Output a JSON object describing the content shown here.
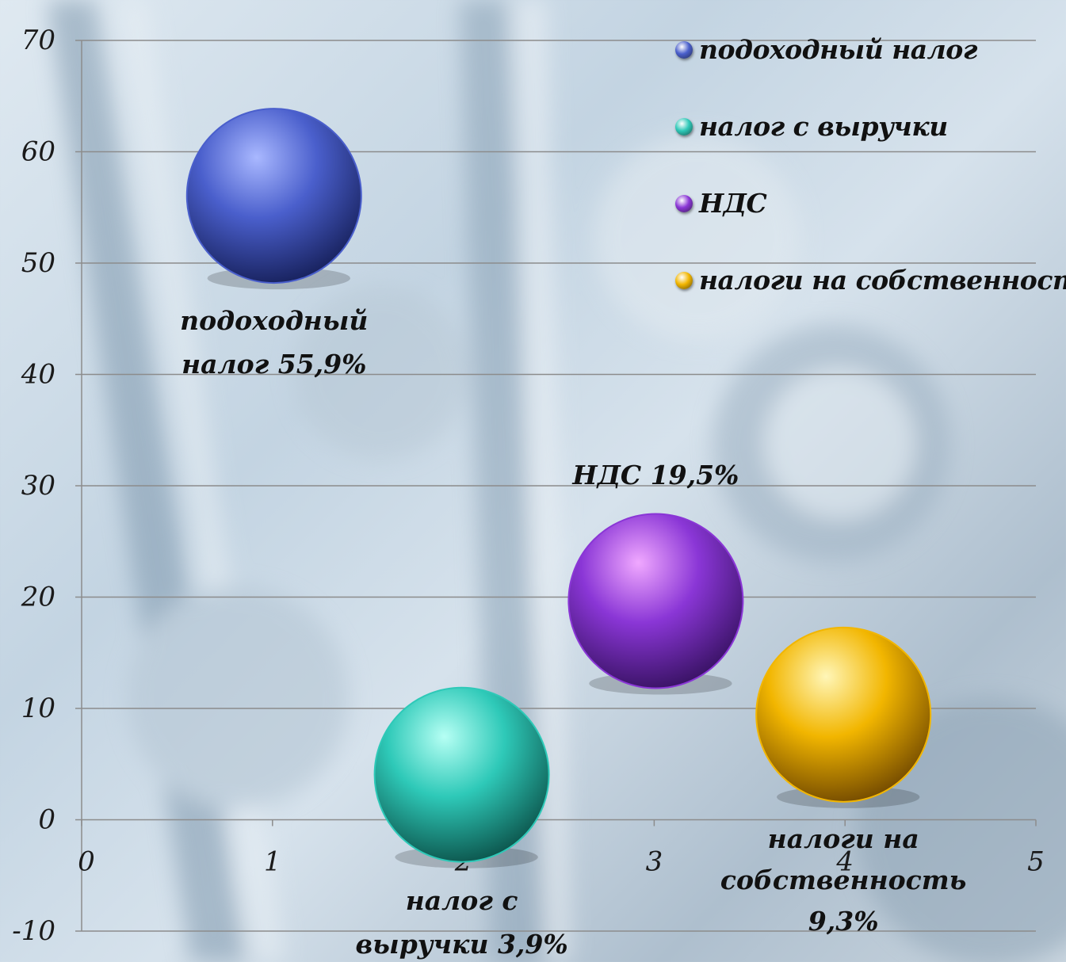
{
  "chart_data": {
    "type": "bubble",
    "title": "",
    "xlabel": "",
    "ylabel": "",
    "xlim": [
      0,
      5
    ],
    "ylim": [
      -10,
      70
    ],
    "x_ticks": [
      "0",
      "1",
      "2",
      "3",
      "4",
      "5"
    ],
    "y_ticks": [
      "-10",
      "0",
      "10",
      "20",
      "30",
      "40",
      "50",
      "60",
      "70"
    ],
    "grid": "horizontal",
    "legend_position": "top-right",
    "series": [
      {
        "name": "подоходный налог",
        "x": 1,
        "y": 55.9,
        "label_lines": [
          "подоходный",
          "налог  55,9%"
        ],
        "color": "#4a5fcc"
      },
      {
        "name": "налог с выручки",
        "x": 2,
        "y": 3.9,
        "label_lines": [
          "налог с",
          "выручки  3,9%"
        ],
        "color": "#2ec9b8"
      },
      {
        "name": "НДС",
        "x": 3,
        "y": 19.5,
        "label_lines": [
          "НДС  19,5%"
        ],
        "color": "#8a36d6"
      },
      {
        "name": "налоги на собственность",
        "x": 4,
        "y": 9.3,
        "label_lines": [
          "налоги на",
          "собственность",
          "9,3%"
        ],
        "color": "#f2b600"
      }
    ]
  }
}
